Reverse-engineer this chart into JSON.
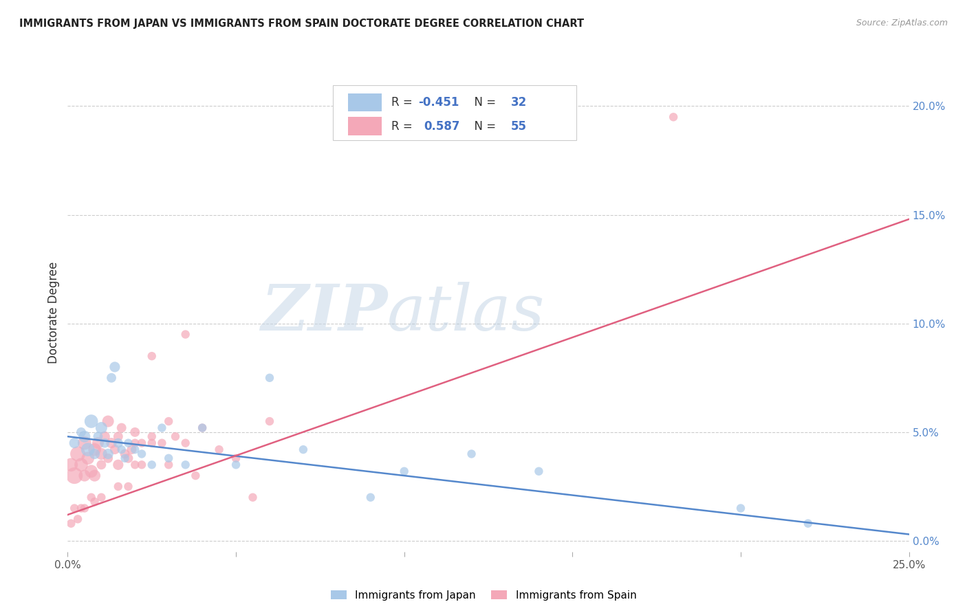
{
  "title": "IMMIGRANTS FROM JAPAN VS IMMIGRANTS FROM SPAIN DOCTORATE DEGREE CORRELATION CHART",
  "source": "Source: ZipAtlas.com",
  "ylabel": "Doctorate Degree",
  "xlim": [
    0.0,
    25.0
  ],
  "ylim": [
    -0.5,
    21.5
  ],
  "japan_color": "#a8c8e8",
  "spain_color": "#f4a8b8",
  "japan_line_color": "#5588cc",
  "spain_line_color": "#e06080",
  "background_color": "#ffffff",
  "japan_scatter_x": [
    0.2,
    0.4,
    0.5,
    0.6,
    0.7,
    0.8,
    0.9,
    1.0,
    1.1,
    1.2,
    1.3,
    1.4,
    1.5,
    1.6,
    1.7,
    1.8,
    2.0,
    2.2,
    2.5,
    2.8,
    3.0,
    3.5,
    4.0,
    5.0,
    6.0,
    7.0,
    9.0,
    10.0,
    12.0,
    14.0,
    20.0,
    22.0
  ],
  "japan_scatter_y": [
    4.5,
    5.0,
    4.8,
    4.2,
    5.5,
    4.0,
    4.8,
    5.2,
    4.5,
    4.0,
    7.5,
    8.0,
    4.5,
    4.2,
    3.8,
    4.5,
    4.2,
    4.0,
    3.5,
    5.2,
    3.8,
    3.5,
    5.2,
    3.5,
    7.5,
    4.2,
    2.0,
    3.2,
    4.0,
    3.2,
    1.5,
    0.8
  ],
  "japan_sizes": [
    120,
    100,
    150,
    200,
    200,
    120,
    100,
    150,
    100,
    120,
    100,
    120,
    100,
    80,
    80,
    80,
    80,
    80,
    80,
    80,
    80,
    80,
    80,
    80,
    80,
    80,
    80,
    80,
    80,
    80,
    80,
    80
  ],
  "spain_scatter_x": [
    0.1,
    0.2,
    0.3,
    0.4,
    0.5,
    0.5,
    0.6,
    0.7,
    0.8,
    0.8,
    0.9,
    1.0,
    1.0,
    1.1,
    1.2,
    1.2,
    1.3,
    1.4,
    1.5,
    1.5,
    1.6,
    1.7,
    1.8,
    1.9,
    2.0,
    2.0,
    2.2,
    2.5,
    2.8,
    3.0,
    3.0,
    3.2,
    3.5,
    4.0,
    4.5,
    5.0,
    5.5,
    6.0,
    3.5,
    2.5,
    2.0,
    1.5,
    1.0,
    0.8,
    0.5,
    0.3,
    0.2,
    0.1,
    18.0,
    2.5,
    3.8,
    2.2,
    1.8,
    0.7,
    0.4
  ],
  "spain_scatter_y": [
    3.5,
    3.0,
    4.0,
    3.5,
    4.5,
    3.0,
    3.8,
    3.2,
    4.2,
    3.0,
    4.5,
    4.0,
    3.5,
    4.8,
    5.5,
    3.8,
    4.5,
    4.2,
    3.5,
    4.8,
    5.2,
    4.0,
    3.8,
    4.2,
    5.0,
    3.5,
    4.5,
    4.8,
    4.5,
    5.5,
    3.5,
    4.8,
    4.5,
    5.2,
    4.2,
    3.8,
    2.0,
    5.5,
    9.5,
    8.5,
    4.5,
    2.5,
    2.0,
    1.8,
    1.5,
    1.0,
    1.5,
    0.8,
    19.5,
    4.5,
    3.0,
    3.5,
    2.5,
    2.0,
    1.5
  ],
  "spain_sizes": [
    200,
    300,
    250,
    200,
    200,
    150,
    180,
    180,
    180,
    150,
    150,
    150,
    100,
    120,
    150,
    100,
    120,
    100,
    120,
    100,
    100,
    100,
    100,
    100,
    100,
    80,
    80,
    80,
    80,
    80,
    80,
    80,
    80,
    80,
    80,
    80,
    80,
    80,
    80,
    80,
    80,
    80,
    80,
    80,
    80,
    80,
    80,
    80,
    80,
    80,
    80,
    80,
    80,
    80,
    80
  ],
  "japan_trendline_x": [
    0.0,
    25.0
  ],
  "japan_trendline_y": [
    4.8,
    0.3
  ],
  "spain_trendline_x": [
    0.0,
    25.0
  ],
  "spain_trendline_y": [
    1.2,
    14.8
  ],
  "legend1_text_left": "R = ",
  "legend1_val": "-0.451",
  "legend1_n": "N = ",
  "legend1_nval": "32",
  "legend2_text_left": "R =  ",
  "legend2_val": "0.587",
  "legend2_n": "N = ",
  "legend2_nval": "55",
  "bottom_legend1": "Immigrants from Japan",
  "bottom_legend2": "Immigrants from Spain",
  "ytick_vals": [
    0,
    5,
    10,
    15,
    20
  ],
  "ytick_labels": [
    "0.0%",
    "5.0%",
    "10.0%",
    "15.0%",
    "20.0%"
  ],
  "xtick_show": [
    0.0,
    25.0
  ],
  "xtick_labels": [
    "0.0%",
    "25.0%"
  ]
}
